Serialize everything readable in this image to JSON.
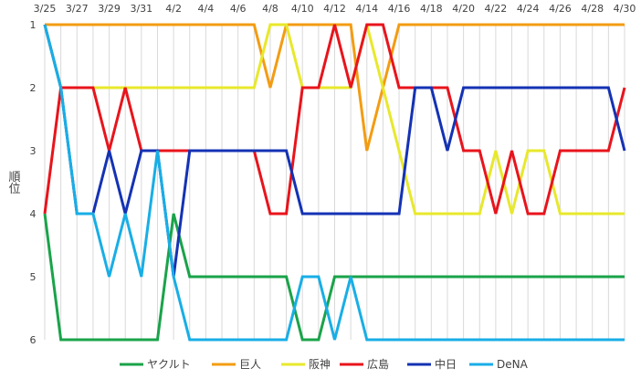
{
  "chart_data": {
    "type": "line",
    "title": "",
    "xlabel": "",
    "ylabel": "順位",
    "x": [
      "3/25",
      "3/26",
      "3/27",
      "3/28",
      "3/29",
      "3/30",
      "3/31",
      "4/1",
      "4/2",
      "4/3",
      "4/4",
      "4/5",
      "4/6",
      "4/7",
      "4/8",
      "4/9",
      "4/10",
      "4/11",
      "4/12",
      "4/13",
      "4/14",
      "4/15",
      "4/16",
      "4/17",
      "4/18",
      "4/19",
      "4/20",
      "4/21",
      "4/22",
      "4/23",
      "4/24",
      "4/25",
      "4/26",
      "4/27",
      "4/28",
      "4/29",
      "4/30"
    ],
    "x_tick_labels": [
      "3/25",
      "3/27",
      "3/29",
      "3/31",
      "4/2",
      "4/4",
      "4/6",
      "4/8",
      "4/10",
      "4/12",
      "4/14",
      "4/16",
      "4/18",
      "4/20",
      "4/22",
      "4/24",
      "4/26",
      "4/28",
      "4/30"
    ],
    "y_tick_labels": [
      "1",
      "2",
      "3",
      "4",
      "5",
      "6"
    ],
    "ylim": [
      1,
      6
    ],
    "y_inverted": true,
    "grid": "vertical",
    "legend_position": "bottom",
    "series": [
      {
        "name": "ヤクルト",
        "color": "#1aa34a",
        "values": [
          4,
          6,
          6,
          6,
          6,
          6,
          6,
          6,
          4,
          5,
          5,
          5,
          5,
          5,
          5,
          5,
          6,
          6,
          5,
          5,
          5,
          5,
          5,
          5,
          5,
          5,
          5,
          5,
          5,
          5,
          5,
          5,
          5,
          5,
          5,
          5,
          5
        ]
      },
      {
        "name": "巨人",
        "color": "#f39c12",
        "values": [
          1,
          1,
          1,
          1,
          1,
          1,
          1,
          1,
          1,
          1,
          1,
          1,
          1,
          1,
          2,
          1,
          1,
          1,
          1,
          1,
          3,
          2,
          1,
          1,
          1,
          1,
          1,
          1,
          1,
          1,
          1,
          1,
          1,
          1,
          1,
          1,
          1
        ]
      },
      {
        "name": "阪神",
        "color": "#e8e82c",
        "values": [
          1,
          2,
          2,
          2,
          2,
          2,
          2,
          2,
          2,
          2,
          2,
          2,
          2,
          2,
          1,
          1,
          2,
          2,
          2,
          2,
          1,
          2,
          3,
          4,
          4,
          4,
          4,
          4,
          3,
          4,
          3,
          3,
          4,
          4,
          4,
          4,
          4
        ]
      },
      {
        "name": "広島",
        "color": "#e8141c",
        "values": [
          4,
          2,
          2,
          2,
          3,
          2,
          3,
          3,
          3,
          3,
          3,
          3,
          3,
          3,
          4,
          4,
          2,
          2,
          1,
          2,
          1,
          1,
          2,
          2,
          2,
          2,
          3,
          3,
          4,
          3,
          4,
          4,
          3,
          3,
          3,
          3,
          2
        ]
      },
      {
        "name": "中日",
        "color": "#1432b4",
        "values": [
          1,
          2,
          4,
          4,
          3,
          4,
          3,
          3,
          5,
          3,
          3,
          3,
          3,
          3,
          3,
          3,
          4,
          4,
          4,
          4,
          4,
          4,
          4,
          2,
          2,
          3,
          2,
          2,
          2,
          2,
          2,
          2,
          2,
          2,
          2,
          2,
          3
        ]
      },
      {
        "name": "DeNA",
        "color": "#18aee6",
        "values": [
          1,
          2,
          4,
          4,
          5,
          4,
          5,
          3,
          5,
          6,
          6,
          6,
          6,
          6,
          6,
          6,
          5,
          5,
          6,
          5,
          6,
          6,
          6,
          6,
          6,
          6,
          6,
          6,
          6,
          6,
          6,
          6,
          6,
          6,
          6,
          6,
          6
        ]
      }
    ]
  }
}
